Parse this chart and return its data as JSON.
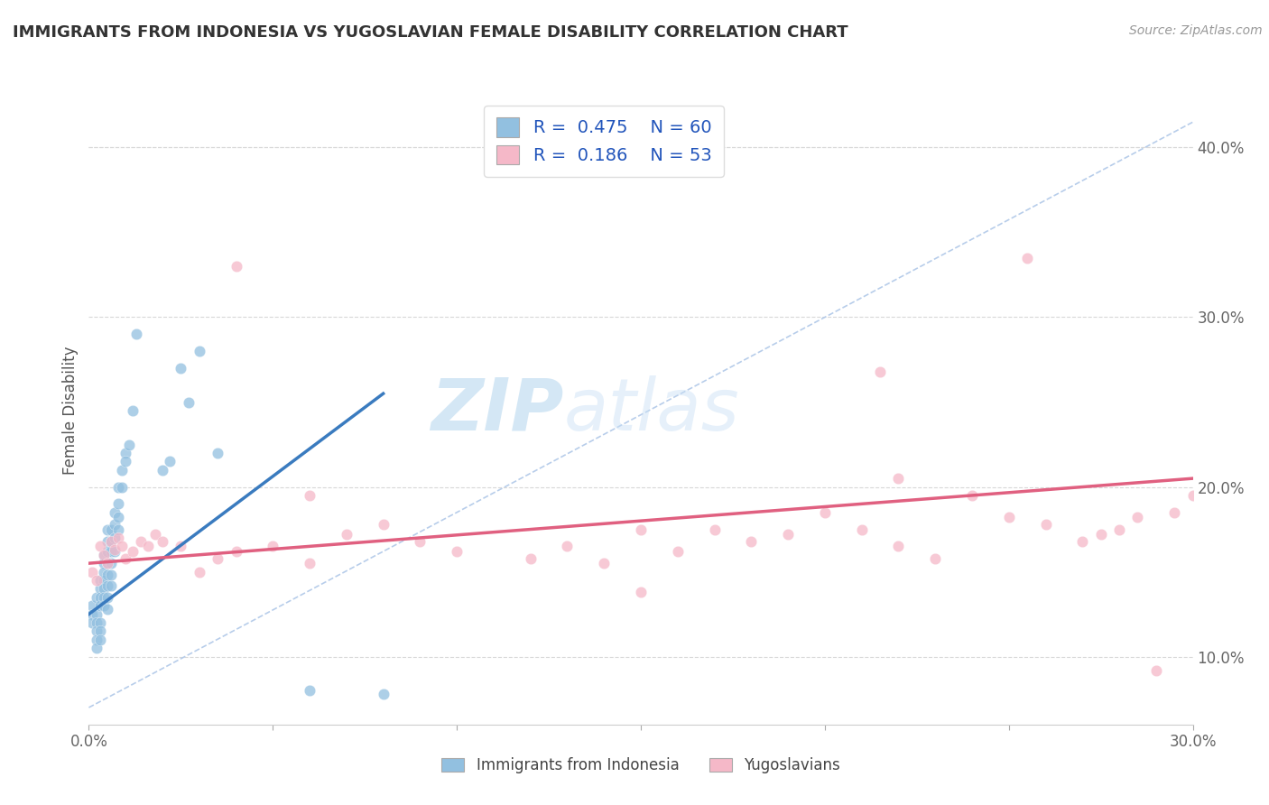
{
  "title": "IMMIGRANTS FROM INDONESIA VS YUGOSLAVIAN FEMALE DISABILITY CORRELATION CHART",
  "source": "Source: ZipAtlas.com",
  "ylabel": "Female Disability",
  "legend_labels": [
    "Immigrants from Indonesia",
    "Yugoslavians"
  ],
  "xlim": [
    0.0,
    0.3
  ],
  "ylim": [
    0.06,
    0.43
  ],
  "x_ticks": [
    0.0,
    0.05,
    0.1,
    0.15,
    0.2,
    0.25,
    0.3
  ],
  "x_tick_labels": [
    "0.0%",
    "",
    "",
    "",
    "",
    "",
    "30.0%"
  ],
  "y_ticks_right": [
    0.1,
    0.2,
    0.3,
    0.4
  ],
  "y_tick_labels_right": [
    "10.0%",
    "20.0%",
    "30.0%",
    "40.0%"
  ],
  "color_blue": "#92c0e0",
  "color_pink": "#f5b8c8",
  "color_blue_line": "#3a7bbf",
  "color_pink_line": "#e06080",
  "color_dashed_line": "#b0c8e8",
  "background_color": "#ffffff",
  "grid_color": "#d8d8d8",
  "blue_trend_x0": 0.0,
  "blue_trend_y0": 0.125,
  "blue_trend_x1": 0.08,
  "blue_trend_y1": 0.255,
  "pink_trend_x0": 0.0,
  "pink_trend_y0": 0.155,
  "pink_trend_x1": 0.3,
  "pink_trend_y1": 0.205,
  "blue_scatter_x": [
    0.001,
    0.001,
    0.001,
    0.002,
    0.002,
    0.002,
    0.002,
    0.002,
    0.002,
    0.003,
    0.003,
    0.003,
    0.003,
    0.003,
    0.003,
    0.003,
    0.004,
    0.004,
    0.004,
    0.004,
    0.004,
    0.004,
    0.004,
    0.005,
    0.005,
    0.005,
    0.005,
    0.005,
    0.005,
    0.005,
    0.005,
    0.006,
    0.006,
    0.006,
    0.006,
    0.006,
    0.006,
    0.007,
    0.007,
    0.007,
    0.007,
    0.008,
    0.008,
    0.008,
    0.008,
    0.009,
    0.009,
    0.01,
    0.01,
    0.011,
    0.012,
    0.013,
    0.02,
    0.022,
    0.025,
    0.027,
    0.03,
    0.035,
    0.06,
    0.08
  ],
  "blue_scatter_y": [
    0.13,
    0.125,
    0.12,
    0.135,
    0.125,
    0.12,
    0.115,
    0.11,
    0.105,
    0.145,
    0.14,
    0.135,
    0.13,
    0.12,
    0.115,
    0.11,
    0.16,
    0.155,
    0.15,
    0.145,
    0.14,
    0.135,
    0.13,
    0.175,
    0.168,
    0.162,
    0.155,
    0.148,
    0.142,
    0.135,
    0.128,
    0.175,
    0.168,
    0.162,
    0.155,
    0.148,
    0.142,
    0.185,
    0.178,
    0.17,
    0.162,
    0.2,
    0.19,
    0.182,
    0.175,
    0.21,
    0.2,
    0.22,
    0.215,
    0.225,
    0.245,
    0.29,
    0.21,
    0.215,
    0.27,
    0.25,
    0.28,
    0.22,
    0.08,
    0.078
  ],
  "pink_scatter_x": [
    0.001,
    0.002,
    0.003,
    0.004,
    0.005,
    0.006,
    0.007,
    0.008,
    0.009,
    0.01,
    0.012,
    0.014,
    0.016,
    0.018,
    0.02,
    0.025,
    0.03,
    0.035,
    0.04,
    0.05,
    0.06,
    0.07,
    0.08,
    0.09,
    0.1,
    0.12,
    0.13,
    0.14,
    0.15,
    0.16,
    0.17,
    0.18,
    0.19,
    0.2,
    0.21,
    0.215,
    0.22,
    0.23,
    0.24,
    0.25,
    0.255,
    0.26,
    0.27,
    0.275,
    0.28,
    0.285,
    0.29,
    0.295,
    0.3,
    0.22,
    0.15,
    0.04,
    0.06
  ],
  "pink_scatter_y": [
    0.15,
    0.145,
    0.165,
    0.16,
    0.155,
    0.168,
    0.163,
    0.17,
    0.165,
    0.158,
    0.162,
    0.168,
    0.165,
    0.172,
    0.168,
    0.165,
    0.15,
    0.158,
    0.162,
    0.165,
    0.155,
    0.172,
    0.178,
    0.168,
    0.162,
    0.158,
    0.165,
    0.155,
    0.138,
    0.162,
    0.175,
    0.168,
    0.172,
    0.185,
    0.175,
    0.268,
    0.165,
    0.158,
    0.195,
    0.182,
    0.335,
    0.178,
    0.168,
    0.172,
    0.175,
    0.182,
    0.092,
    0.185,
    0.195,
    0.205,
    0.175,
    0.33,
    0.195
  ]
}
